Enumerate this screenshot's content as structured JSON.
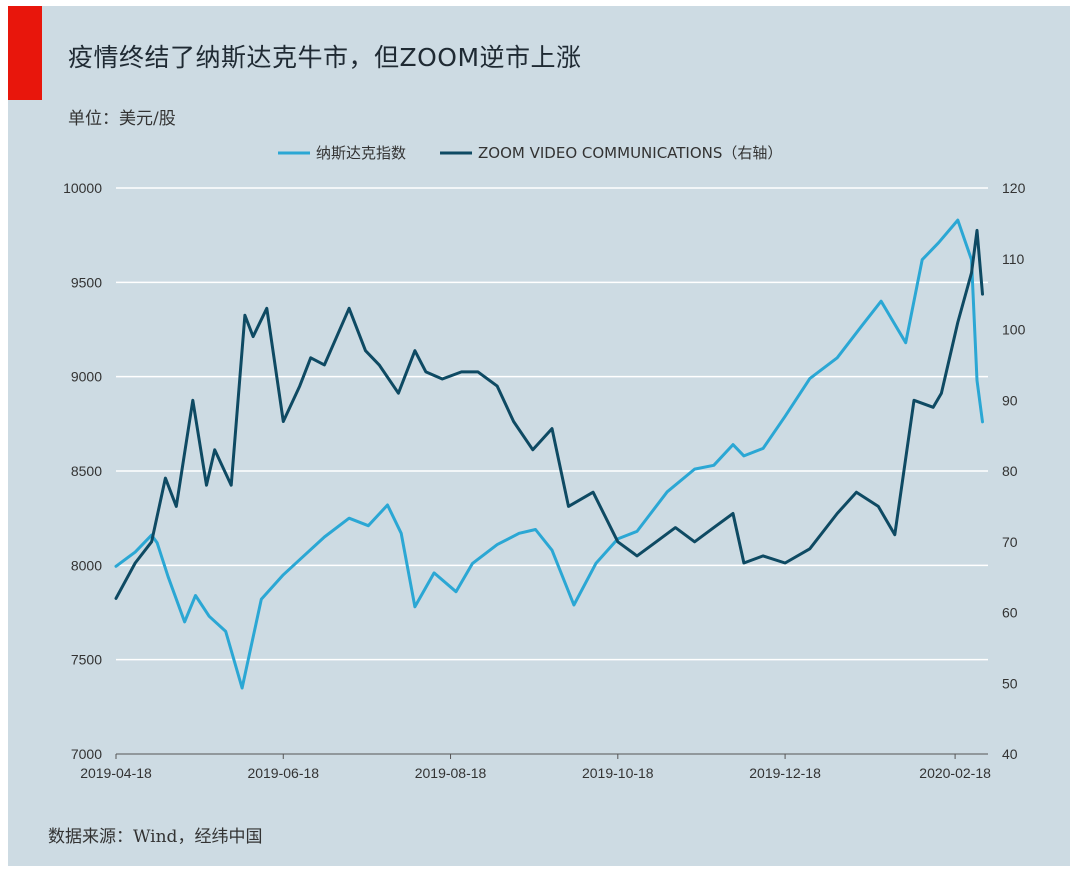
{
  "header": {
    "title": "疫情终结了纳斯达克牛市，但ZOOM逆市上涨",
    "unit": "单位：美元/股"
  },
  "footer": {
    "source": "数据来源：Wind，经纬中国"
  },
  "colors": {
    "accent": "#e8160c",
    "panel_bg": "#cddbe3",
    "nasdaq": "#2ba7d4",
    "zoom": "#0e4a63",
    "grid": "#ffffff",
    "axis": "#555555"
  },
  "chart_data": {
    "type": "line",
    "title": "疫情终结了纳斯达克牛市，但ZOOM逆市上涨",
    "grid": true,
    "legend_position": "top-center",
    "x_ticks": [
      "2019-04-18",
      "2019-06-18",
      "2019-08-18",
      "2019-10-18",
      "2019-12-18",
      "2020-02-18"
    ],
    "x_range": [
      "2019-04-18",
      "2020-03-01"
    ],
    "y_left": {
      "ylim": [
        7000,
        10000
      ],
      "ticks": [
        7000,
        7500,
        8000,
        8500,
        9000,
        9500,
        10000
      ]
    },
    "y_right": {
      "ylim": [
        40,
        120
      ],
      "ticks": [
        40,
        50,
        60,
        70,
        80,
        90,
        100,
        110,
        120
      ]
    },
    "series": [
      {
        "name": "纳斯达克指数",
        "axis": "left",
        "color": "#2ba7d4",
        "x": [
          "2019-04-18",
          "2019-04-25",
          "2019-05-01",
          "2019-05-03",
          "2019-05-07",
          "2019-05-13",
          "2019-05-17",
          "2019-05-22",
          "2019-05-28",
          "2019-06-03",
          "2019-06-10",
          "2019-06-18",
          "2019-06-24",
          "2019-07-03",
          "2019-07-12",
          "2019-07-19",
          "2019-07-26",
          "2019-07-31",
          "2019-08-05",
          "2019-08-12",
          "2019-08-20",
          "2019-08-26",
          "2019-09-04",
          "2019-09-12",
          "2019-09-18",
          "2019-09-24",
          "2019-10-02",
          "2019-10-10",
          "2019-10-18",
          "2019-10-25",
          "2019-11-05",
          "2019-11-15",
          "2019-11-22",
          "2019-11-29",
          "2019-12-03",
          "2019-12-10",
          "2019-12-18",
          "2019-12-27",
          "2020-01-06",
          "2020-01-15",
          "2020-01-22",
          "2020-01-31",
          "2020-02-06",
          "2020-02-12",
          "2020-02-19",
          "2020-02-24",
          "2020-02-26",
          "2020-02-28"
        ],
        "values": [
          7995,
          8070,
          8160,
          8120,
          7940,
          7700,
          7840,
          7730,
          7650,
          7350,
          7820,
          7950,
          8030,
          8150,
          8250,
          8210,
          8320,
          8170,
          7780,
          7960,
          7860,
          8010,
          8110,
          8170,
          8190,
          8080,
          7790,
          8010,
          8140,
          8180,
          8390,
          8510,
          8530,
          8640,
          8580,
          8620,
          8790,
          8990,
          9100,
          9270,
          9400,
          9180,
          9620,
          9710,
          9830,
          9620,
          8980,
          8760
        ]
      },
      {
        "name": "ZOOM VIDEO COMMUNICATIONS（右轴）",
        "axis": "right",
        "color": "#0e4a63",
        "x": [
          "2019-04-18",
          "2019-04-25",
          "2019-05-01",
          "2019-05-06",
          "2019-05-10",
          "2019-05-16",
          "2019-05-21",
          "2019-05-24",
          "2019-05-30",
          "2019-06-04",
          "2019-06-07",
          "2019-06-12",
          "2019-06-18",
          "2019-06-24",
          "2019-06-28",
          "2019-07-03",
          "2019-07-12",
          "2019-07-18",
          "2019-07-23",
          "2019-07-30",
          "2019-08-05",
          "2019-08-09",
          "2019-08-15",
          "2019-08-22",
          "2019-08-28",
          "2019-09-04",
          "2019-09-10",
          "2019-09-17",
          "2019-09-24",
          "2019-09-30",
          "2019-10-09",
          "2019-10-18",
          "2019-10-25",
          "2019-11-01",
          "2019-11-08",
          "2019-11-15",
          "2019-11-22",
          "2019-11-29",
          "2019-12-03",
          "2019-12-10",
          "2019-12-18",
          "2019-12-27",
          "2020-01-06",
          "2020-01-13",
          "2020-01-21",
          "2020-01-27",
          "2020-02-03",
          "2020-02-10",
          "2020-02-13",
          "2020-02-19",
          "2020-02-24",
          "2020-02-26",
          "2020-02-28"
        ],
        "values": [
          62,
          67,
          70,
          79,
          75,
          90,
          78,
          83,
          78,
          102,
          99,
          103,
          87,
          92,
          96,
          95,
          103,
          97,
          95,
          91,
          97,
          94,
          93,
          94,
          94,
          92,
          87,
          83,
          86,
          75,
          77,
          70,
          68,
          70,
          72,
          70,
          72,
          74,
          67,
          68,
          67,
          69,
          74,
          77,
          75,
          71,
          90,
          89,
          91,
          101,
          108,
          114,
          105
        ]
      }
    ]
  }
}
